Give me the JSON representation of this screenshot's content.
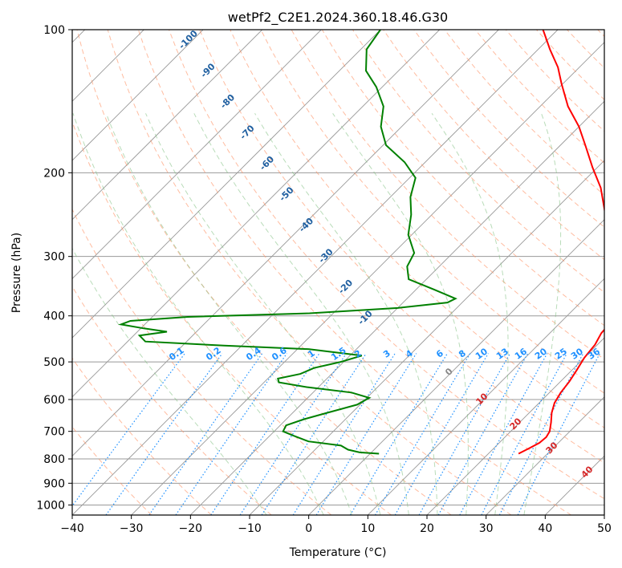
{
  "chart_data": {
    "type": "skew-t",
    "title": "wetPf2_C2E1.2024.360.18.46.G30",
    "xlabel": "Temperature (°C)",
    "ylabel": "Pressure (hPa)",
    "xlim": [
      -40,
      50
    ],
    "ylim_hPa": [
      1050,
      100
    ],
    "log_pressure_axis": true,
    "grid": true,
    "x_ticks": [
      "−40",
      "−30",
      "−20",
      "−10",
      "0",
      "10",
      "20",
      "30",
      "40",
      "50"
    ],
    "y_ticks": [
      "100",
      "200",
      "300",
      "400",
      "500",
      "600",
      "700",
      "800",
      "900",
      "1000"
    ],
    "temperature_line": {
      "color": "#ff0000",
      "points": [
        {
          "p": 780,
          "t": 25.1
        },
        {
          "p": 760,
          "t": 26.0
        },
        {
          "p": 740,
          "t": 26.8
        },
        {
          "p": 720,
          "t": 27.0
        },
        {
          "p": 700,
          "t": 26.6
        },
        {
          "p": 670,
          "t": 25.3
        },
        {
          "p": 640,
          "t": 23.8
        },
        {
          "p": 610,
          "t": 22.6
        },
        {
          "p": 580,
          "t": 21.9
        },
        {
          "p": 550,
          "t": 21.5
        },
        {
          "p": 520,
          "t": 20.8
        },
        {
          "p": 490,
          "t": 20.0
        },
        {
          "p": 460,
          "t": 19.6
        },
        {
          "p": 435,
          "t": 18.7
        },
        {
          "p": 415,
          "t": 18.5
        },
        {
          "p": 395,
          "t": 17.5
        },
        {
          "p": 380,
          "t": 15.8
        },
        {
          "p": 365,
          "t": 13.5
        },
        {
          "p": 350,
          "t": 12.5
        },
        {
          "p": 330,
          "t": 10.6
        },
        {
          "p": 300,
          "t": 7.0
        },
        {
          "p": 270,
          "t": 3.0
        },
        {
          "p": 240,
          "t": -1.5
        },
        {
          "p": 215,
          "t": -6.0
        },
        {
          "p": 195,
          "t": -10.8
        },
        {
          "p": 175,
          "t": -15.8
        },
        {
          "p": 160,
          "t": -20.0
        },
        {
          "p": 145,
          "t": -25.3
        },
        {
          "p": 130,
          "t": -30.2
        },
        {
          "p": 120,
          "t": -33.6
        },
        {
          "p": 110,
          "t": -38.0
        },
        {
          "p": 100,
          "t": -42.5
        }
      ]
    },
    "dewpoint_line": {
      "color": "#008000",
      "points": [
        {
          "p": 780,
          "t": 1.5
        },
        {
          "p": 775,
          "t": -2.0
        },
        {
          "p": 765,
          "t": -4.4
        },
        {
          "p": 750,
          "t": -6.3
        },
        {
          "p": 735,
          "t": -12.5
        },
        {
          "p": 715,
          "t": -16.0
        },
        {
          "p": 700,
          "t": -18.5
        },
        {
          "p": 680,
          "t": -19.0
        },
        {
          "p": 660,
          "t": -17.0
        },
        {
          "p": 640,
          "t": -14.2
        },
        {
          "p": 615,
          "t": -10.5
        },
        {
          "p": 595,
          "t": -9.6
        },
        {
          "p": 580,
          "t": -13.5
        },
        {
          "p": 565,
          "t": -22.0
        },
        {
          "p": 552,
          "t": -27.5
        },
        {
          "p": 542,
          "t": -28.3
        },
        {
          "p": 530,
          "t": -25.3
        },
        {
          "p": 515,
          "t": -24.0
        },
        {
          "p": 500,
          "t": -20.5
        },
        {
          "p": 485,
          "t": -18.0
        },
        {
          "p": 470,
          "t": -28.0
        },
        {
          "p": 462,
          "t": -43.0
        },
        {
          "p": 453,
          "t": -57.0
        },
        {
          "p": 440,
          "t": -59.0
        },
        {
          "p": 432,
          "t": -55.0
        },
        {
          "p": 425,
          "t": -59.5
        },
        {
          "p": 417,
          "t": -64.0
        },
        {
          "p": 410,
          "t": -63.0
        },
        {
          "p": 402,
          "t": -54.0
        },
        {
          "p": 395,
          "t": -34.0
        },
        {
          "p": 385,
          "t": -20.0
        },
        {
          "p": 375,
          "t": -12.5
        },
        {
          "p": 368,
          "t": -11.8
        },
        {
          "p": 352,
          "t": -17.0
        },
        {
          "p": 335,
          "t": -23.0
        },
        {
          "p": 315,
          "t": -25.4
        },
        {
          "p": 295,
          "t": -26.5
        },
        {
          "p": 270,
          "t": -30.6
        },
        {
          "p": 245,
          "t": -33.5
        },
        {
          "p": 225,
          "t": -36.6
        },
        {
          "p": 205,
          "t": -39.0
        },
        {
          "p": 190,
          "t": -43.5
        },
        {
          "p": 175,
          "t": -49.5
        },
        {
          "p": 160,
          "t": -53.5
        },
        {
          "p": 145,
          "t": -56.5
        },
        {
          "p": 132,
          "t": -61.0
        },
        {
          "p": 122,
          "t": -65.5
        },
        {
          "p": 110,
          "t": -69.0
        },
        {
          "p": 100,
          "t": -70.0
        }
      ]
    },
    "dry_adiabat_labels": [
      {
        "text": "-100",
        "value": -100
      },
      {
        "text": "-90",
        "value": -90
      },
      {
        "text": "-80",
        "value": -80
      },
      {
        "text": "-70",
        "value": -70
      },
      {
        "text": "-60",
        "value": -60
      },
      {
        "text": "-50",
        "value": -50
      },
      {
        "text": "-40",
        "value": -40
      },
      {
        "text": "-30",
        "value": -30
      },
      {
        "text": "-20",
        "value": -20
      },
      {
        "text": "-10",
        "value": -10
      }
    ],
    "mixing_ratio_labels": [
      {
        "text": "0.1",
        "value": 0.1
      },
      {
        "text": "0.2",
        "value": 0.2
      },
      {
        "text": "0.4",
        "value": 0.4
      },
      {
        "text": "0.6",
        "value": 0.6
      },
      {
        "text": "1",
        "value": 1
      },
      {
        "text": "1.5",
        "value": 1.5
      },
      {
        "text": "2",
        "value": 2
      },
      {
        "text": "3",
        "value": 3
      },
      {
        "text": "4",
        "value": 4
      },
      {
        "text": "6",
        "value": 6
      },
      {
        "text": "8",
        "value": 8
      },
      {
        "text": "10",
        "value": 10
      },
      {
        "text": "13",
        "value": 13
      },
      {
        "text": "16",
        "value": 16
      },
      {
        "text": "20",
        "value": 20
      },
      {
        "text": "25",
        "value": 25
      },
      {
        "text": "30",
        "value": 30
      },
      {
        "text": "36",
        "value": 36
      }
    ],
    "moist_adiabat_labels": [
      {
        "text": "0",
        "value": 0
      },
      {
        "text": "10",
        "value": 10
      },
      {
        "text": "20",
        "value": 20
      },
      {
        "text": "30",
        "value": 30
      },
      {
        "text": "40",
        "value": 40
      }
    ],
    "colors": {
      "temperature": "#ff0000",
      "dewpoint": "#008000",
      "isotherm_grid": "#999999",
      "dry_adiabat": "#ff9060",
      "moist_adiabat": "#7fbf7f",
      "mixing_ratio": "#1e90ff",
      "dry_label": "#1f5fa0",
      "moist_label": "#d62728"
    }
  }
}
